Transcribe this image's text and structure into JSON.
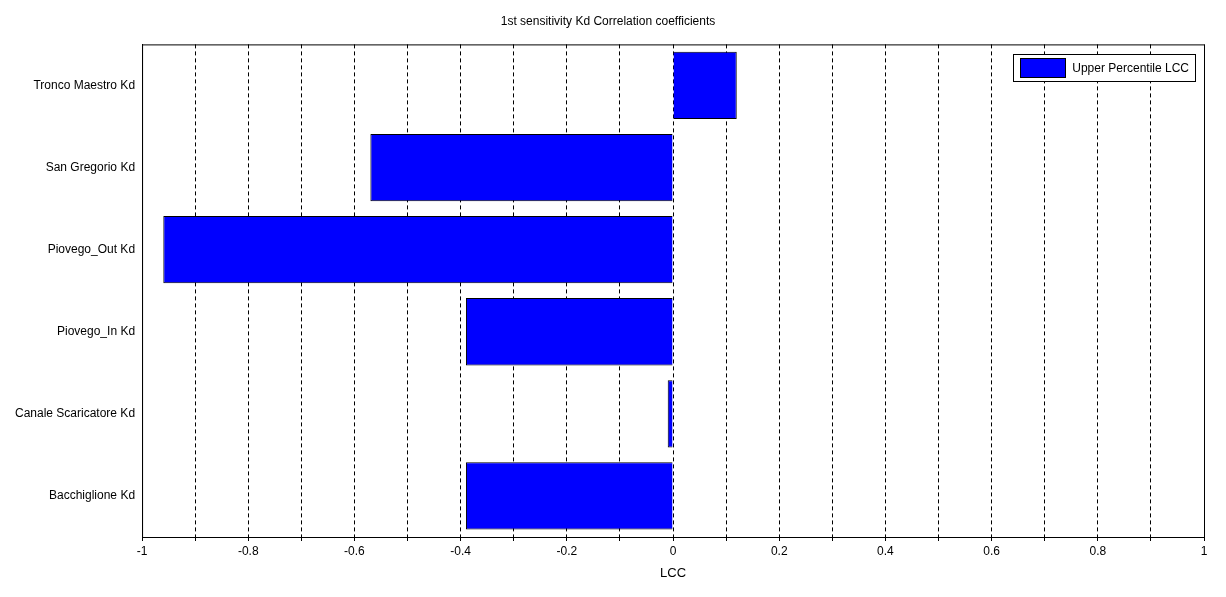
{
  "chart_data": {
    "type": "bar",
    "orientation": "horizontal",
    "title": "1st sensitivity Kd Correlation coefficients",
    "xlabel": "LCC",
    "categories": [
      "Tronco Maestro Kd",
      "San Gregorio Kd",
      "Piovego_Out Kd",
      "Piovego_In Kd",
      "Canale Scaricatore Kd",
      "Bacchiglione Kd"
    ],
    "series": [
      {
        "name": "Upper Percentile LCC",
        "color": "#0000ff",
        "values": [
          0.12,
          -0.57,
          -0.96,
          -0.39,
          -0.01,
          -0.39
        ]
      }
    ],
    "xlim": [
      -1,
      1
    ],
    "xticks": [
      -1,
      {
        "value": -0.9,
        "label": null
      },
      -0.8,
      {
        "value": -0.7,
        "label": null
      },
      -0.6,
      {
        "value": -0.5,
        "label": null
      },
      -0.4,
      {
        "value": -0.3,
        "label": null
      },
      -0.2,
      {
        "value": -0.1,
        "label": null
      },
      0,
      {
        "value": 0.1,
        "label": null
      },
      0.2,
      {
        "value": 0.3,
        "label": null
      },
      0.4,
      {
        "value": 0.5,
        "label": null
      },
      0.6,
      {
        "value": 0.7,
        "label": null
      },
      0.8,
      {
        "value": 0.9,
        "label": null
      },
      1
    ],
    "grid": "x",
    "legend": "top right"
  }
}
